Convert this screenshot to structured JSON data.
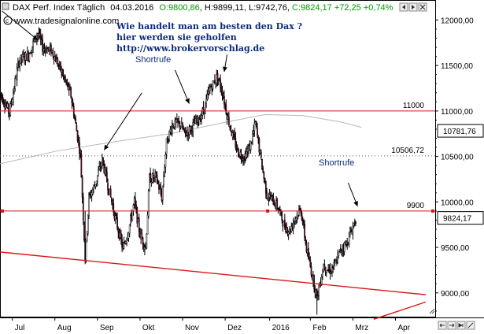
{
  "header": {
    "index_name": "DAX Perf. Index Täglich",
    "date": "04.03.2016",
    "open": "O:9800,86",
    "high": "H:9899,11",
    "low": "L:9742,76",
    "close_change": "C:9824,17 +72,25 +0,74%"
  },
  "watermark": "www.tradesignalonline.com",
  "annotations": {
    "question_line1": "Wie handelt man am besten  den Dax ?",
    "question_line2": "hier werden sie geholfen",
    "url": "http://www.brokervorschlag.de",
    "shortrufe_1": "Shortrufe",
    "shortrufe_2": "Shortrufe"
  },
  "colors": {
    "candle_up": "#ffffff",
    "candle_down": "#7a0a2a",
    "wick": "#000000",
    "hline": "#d81818",
    "sma": "#b8b8b8",
    "trend": "#d81818",
    "price_box": "#000000"
  },
  "chart_data": {
    "type": "candlestick",
    "x_ticks": [
      "Jul",
      "Aug",
      "Sep",
      "Okt",
      "Nov",
      "Dez",
      "2016",
      "Feb",
      "Mrz",
      "Apr"
    ],
    "y_ticks": [
      "12000,00",
      "11500,00",
      "11000,00",
      "10500,00",
      "10000,00",
      "9500,00",
      "9000,00"
    ],
    "y_tick_values": [
      12000,
      11500,
      11000,
      10500,
      10000,
      9500,
      9000
    ],
    "ylim": [
      8730,
      12220
    ],
    "x_tick_day_index": [
      13,
      58,
      103,
      148,
      193,
      238,
      285,
      328,
      373,
      418
    ],
    "hlines": [
      {
        "label": "11000",
        "value": 11000,
        "style": "solid"
      },
      {
        "label": "10506,72",
        "value": 10506.72,
        "style": "dotted"
      },
      {
        "label": "9900",
        "value": 9900,
        "style": "solid"
      }
    ],
    "current_price_labels": [
      {
        "label": "10781,76",
        "value": 10781.76
      },
      {
        "label": "9824,17",
        "value": 9824.17
      }
    ],
    "sma_points": [
      [
        0,
        10420
      ],
      [
        60,
        10560
      ],
      [
        120,
        10660
      ],
      [
        180,
        10750
      ],
      [
        240,
        10880
      ],
      [
        280,
        10960
      ],
      [
        320,
        10950
      ],
      [
        360,
        10880
      ],
      [
        382,
        10820
      ]
    ],
    "trend_lines": [
      {
        "from": [
          0,
          9450
        ],
        "to": [
          450,
          8980
        ]
      },
      {
        "from": [
          395,
          8710
        ],
        "to": [
          450,
          8900
        ]
      }
    ],
    "annotation_arrows": [
      {
        "from": [
          2,
          12100
        ],
        "to": [
          40,
          11780
        ]
      },
      {
        "from": [
          150,
          11200
        ],
        "to": [
          110,
          10570
        ]
      },
      {
        "from": [
          185,
          11450
        ],
        "to": [
          200,
          11080
        ]
      },
      {
        "from": [
          240,
          11620
        ],
        "to": [
          237,
          11430
        ]
      },
      {
        "from": [
          368,
          10210
        ],
        "to": [
          378,
          9950
        ]
      }
    ],
    "path": [
      [
        0,
        11200
      ],
      [
        10,
        10980
      ],
      [
        20,
        11550
      ],
      [
        30,
        11620
      ],
      [
        40,
        11860
      ],
      [
        45,
        11700
      ],
      [
        55,
        11660
      ],
      [
        65,
        11430
      ],
      [
        75,
        11170
      ],
      [
        85,
        10520
      ],
      [
        90,
        9380
      ],
      [
        94,
        10040
      ],
      [
        100,
        10180
      ],
      [
        108,
        10460
      ],
      [
        115,
        10140
      ],
      [
        122,
        9820
      ],
      [
        130,
        9480
      ],
      [
        136,
        9700
      ],
      [
        142,
        10000
      ],
      [
        148,
        9640
      ],
      [
        154,
        9500
      ],
      [
        158,
        10260
      ],
      [
        165,
        10270
      ],
      [
        171,
        10050
      ],
      [
        176,
        10650
      ],
      [
        182,
        10850
      ],
      [
        190,
        10860
      ],
      [
        196,
        10740
      ],
      [
        203,
        10830
      ],
      [
        210,
        10900
      ],
      [
        216,
        11030
      ],
      [
        222,
        11250
      ],
      [
        230,
        11380
      ],
      [
        235,
        11210
      ],
      [
        240,
        10960
      ],
      [
        246,
        10720
      ],
      [
        252,
        10540
      ],
      [
        258,
        10500
      ],
      [
        264,
        10600
      ],
      [
        270,
        10860
      ],
      [
        276,
        10450
      ],
      [
        282,
        10080
      ],
      [
        288,
        10020
      ],
      [
        294,
        9940
      ],
      [
        300,
        9750
      ],
      [
        306,
        9680
      ],
      [
        312,
        9830
      ],
      [
        318,
        9920
      ],
      [
        324,
        9480
      ],
      [
        330,
        9190
      ],
      [
        335,
        8960
      ],
      [
        338,
        9100
      ],
      [
        342,
        9310
      ],
      [
        348,
        9240
      ],
      [
        354,
        9300
      ],
      [
        360,
        9480
      ],
      [
        366,
        9540
      ],
      [
        371,
        9670
      ],
      [
        376,
        9820
      ]
    ]
  }
}
